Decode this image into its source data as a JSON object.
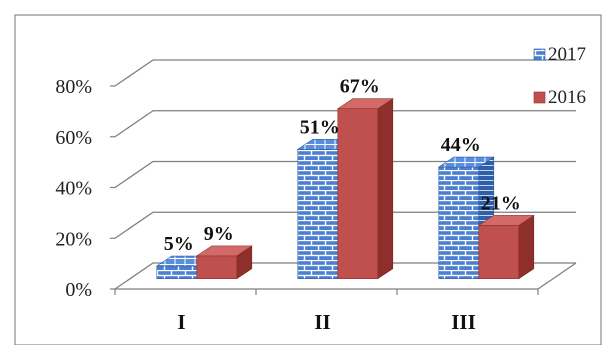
{
  "chart_data": {
    "type": "bar",
    "categories": [
      "I",
      "II",
      "III"
    ],
    "series": [
      {
        "name": "2017",
        "values": [
          5,
          51,
          44
        ],
        "labels": [
          "5%",
          "51%",
          "44%"
        ],
        "color": "#4a7fd1",
        "pattern": "brick"
      },
      {
        "name": "2016",
        "values": [
          9,
          67,
          21
        ],
        "labels": [
          "9%",
          "67%",
          "21%"
        ],
        "color": "#c0504d"
      }
    ],
    "yticks": [
      "0%",
      "20%",
      "40%",
      "60%",
      "80%"
    ],
    "ylim": [
      0,
      80
    ],
    "grid": true,
    "legend_position": "right",
    "title": "",
    "xlabel": "",
    "ylabel": ""
  }
}
